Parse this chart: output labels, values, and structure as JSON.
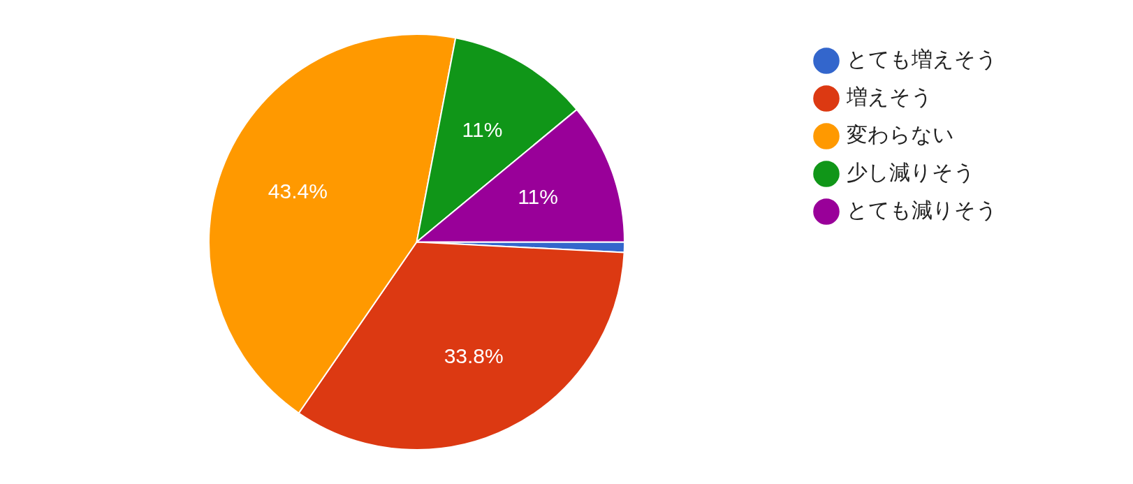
{
  "chart_data": {
    "type": "pie",
    "categories": [
      "とても増えそう",
      "増えそう",
      "変わらない",
      "少し減りそう",
      "とても減りそう"
    ],
    "values": [
      0.8,
      33.8,
      43.4,
      11,
      11
    ],
    "colors": [
      "#3366cc",
      "#dc3912",
      "#ff9900",
      "#109618",
      "#990099"
    ],
    "value_labels": [
      null,
      "33.8%",
      "43.4%",
      "11%",
      "11%"
    ],
    "legend": "top right"
  }
}
